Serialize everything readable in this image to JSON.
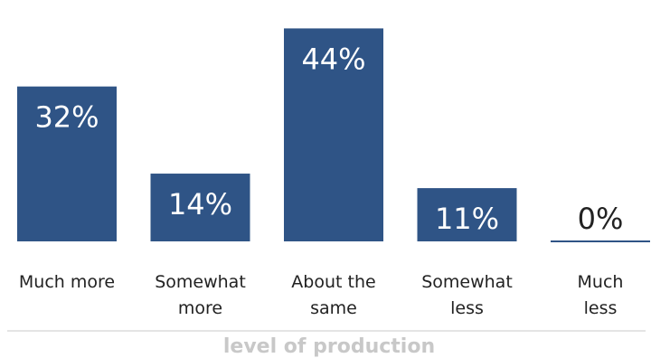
{
  "chart_data": {
    "type": "bar",
    "categories": [
      [
        "Much more"
      ],
      [
        "Somewhat",
        "more"
      ],
      [
        "About the",
        "same"
      ],
      [
        "Somewhat",
        "less"
      ],
      [
        "Much",
        "less"
      ]
    ],
    "values": [
      32,
      14,
      44,
      11,
      0
    ],
    "value_labels": [
      "32%",
      "14%",
      "44%",
      "11%",
      "0%"
    ],
    "xlabel": "level of production",
    "ylabel": "",
    "title": "",
    "ylim": [
      0,
      48
    ],
    "grid": false,
    "legend": "none",
    "colors": {
      "bar": "#2f5486",
      "label_inside": "#ffffff",
      "label_outside": "#222222",
      "xlabel": "#c8c8c8"
    }
  }
}
